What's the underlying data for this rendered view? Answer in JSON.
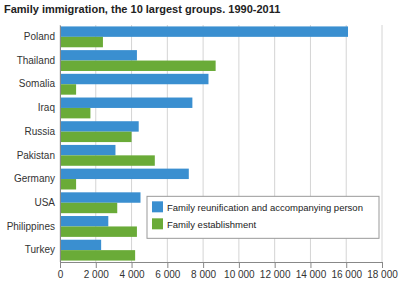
{
  "chart_data": {
    "type": "bar",
    "orientation": "horizontal",
    "title": "Family immigration, the 10 largest groups. 1990-2011",
    "categories": [
      "Poland",
      "Thailand",
      "Somalia",
      "Iraq",
      "Russia",
      "Pakistan",
      "Germany",
      "USA",
      "Philippines",
      "Turkey"
    ],
    "series": [
      {
        "name": "Family reunification and accompanying person",
        "color": "#3a8fd0",
        "values": [
          16100,
          4300,
          8300,
          7400,
          4400,
          3100,
          7200,
          4500,
          2700,
          2300
        ]
      },
      {
        "name": "Family establishment",
        "color": "#6aab38",
        "values": [
          2400,
          8700,
          900,
          1700,
          4000,
          5300,
          900,
          3200,
          4300,
          4200
        ]
      }
    ],
    "xlim": [
      0,
      18000
    ],
    "xticks": [
      0,
      {
        "value": 2000,
        "label": "2 000"
      },
      {
        "value": 4000,
        "label": "4 000"
      },
      {
        "value": 6000,
        "label": "6 000"
      },
      {
        "value": 8000,
        "label": "8 000"
      },
      {
        "value": 10000,
        "label": "10 000"
      },
      {
        "value": 12000,
        "label": "12 000"
      },
      {
        "value": 14000,
        "label": "14 000"
      },
      {
        "value": 16000,
        "label": "16 000"
      },
      {
        "value": 18000,
        "label": "18 000"
      }
    ],
    "grid": true,
    "legend": "bottom-right"
  }
}
